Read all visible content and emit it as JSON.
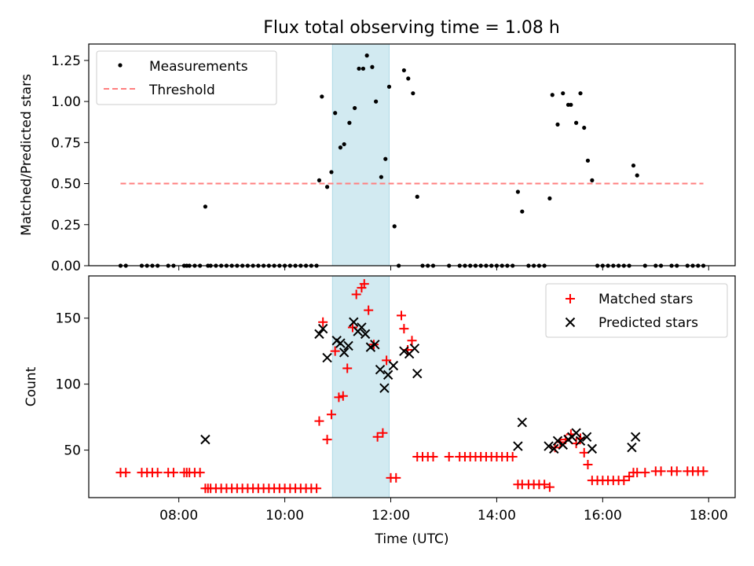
{
  "title": "Flux total observing time = 1.08 h",
  "colors": {
    "measurement": "#000000",
    "threshold": "#ff7f7f",
    "matched": "#ff0000",
    "predicted": "#000000",
    "span": "#add8e6"
  },
  "chart_data": [
    {
      "type": "scatter",
      "name": "ratio",
      "xlabel": "",
      "ylabel": "Matched/Predicted stars",
      "xlim": [
        6.3,
        18.5
      ],
      "ylim": [
        0,
        1.35
      ],
      "yticks": [
        0,
        0.25,
        0.5,
        0.75,
        1.0,
        1.25
      ],
      "yticklabels": [
        "0.00",
        "0.25",
        "0.50",
        "0.75",
        "1.00",
        "1.25"
      ],
      "span_hours": [
        10.9,
        11.97
      ],
      "legend": {
        "placement": "top-left",
        "measurements_label": "Measurements",
        "threshold_label": "Threshold"
      },
      "threshold": {
        "value": 0.5,
        "x_start": 6.9,
        "x_end": 17.9
      },
      "measurements": {
        "x": [
          6.9,
          7.0,
          7.3,
          7.4,
          7.5,
          7.6,
          7.8,
          7.9,
          8.1,
          8.15,
          8.2,
          8.3,
          8.4,
          8.5,
          8.55,
          8.6,
          8.7,
          8.8,
          8.9,
          9.0,
          9.1,
          9.2,
          9.3,
          9.4,
          9.5,
          9.6,
          9.7,
          9.8,
          9.9,
          10.0,
          10.1,
          10.2,
          10.3,
          10.4,
          10.5,
          10.6,
          10.65,
          10.7,
          10.8,
          10.88,
          10.95,
          11.05,
          11.12,
          11.22,
          11.32,
          11.4,
          11.48,
          11.55,
          11.65,
          11.72,
          11.82,
          11.9,
          11.97,
          12.07,
          12.15,
          12.25,
          12.33,
          12.42,
          12.5,
          12.6,
          12.7,
          12.8,
          13.1,
          13.3,
          13.4,
          13.5,
          13.6,
          13.7,
          13.8,
          13.9,
          14.0,
          14.1,
          14.2,
          14.3,
          14.4,
          14.48,
          14.6,
          14.7,
          14.8,
          14.9,
          15.0,
          15.05,
          15.15,
          15.25,
          15.35,
          15.4,
          15.5,
          15.58,
          15.65,
          15.72,
          15.8,
          15.9,
          16.0,
          16.1,
          16.2,
          16.3,
          16.4,
          16.5,
          16.58,
          16.65,
          16.8,
          17.0,
          17.1,
          17.3,
          17.4,
          17.6,
          17.7,
          17.8,
          17.9
        ],
        "y": [
          0,
          0,
          0,
          0,
          0,
          0,
          0,
          0,
          0,
          0,
          0,
          0,
          0,
          0.36,
          0,
          0,
          0,
          0,
          0,
          0,
          0,
          0,
          0,
          0,
          0,
          0,
          0,
          0,
          0,
          0,
          0,
          0,
          0,
          0,
          0,
          0,
          0.52,
          1.03,
          0.48,
          0.57,
          0.93,
          0.72,
          0.74,
          0.87,
          0.96,
          1.2,
          1.2,
          1.28,
          1.21,
          1.0,
          0.54,
          0.65,
          1.09,
          0.24,
          0,
          1.19,
          1.14,
          1.05,
          0.42,
          0,
          0,
          0,
          0,
          0,
          0,
          0,
          0,
          0,
          0,
          0,
          0,
          0,
          0,
          0,
          0.45,
          0.33,
          0,
          0,
          0,
          0,
          0.41,
          1.04,
          0.86,
          1.05,
          0.98,
          0.98,
          0.87,
          1.05,
          0.84,
          0.64,
          0.52,
          0,
          0,
          0,
          0,
          0,
          0,
          0,
          0.61,
          0.55,
          0,
          0,
          0,
          0,
          0,
          0,
          0,
          0,
          0
        ]
      }
    },
    {
      "type": "scatter",
      "name": "counts",
      "xlabel": "Time (UTC)",
      "ylabel": "Count",
      "xlim": [
        6.3,
        18.5
      ],
      "ylim": [
        14,
        182
      ],
      "yticks": [
        50,
        100,
        150
      ],
      "yticklabels": [
        "50",
        "100",
        "150"
      ],
      "xticks": [
        8,
        10,
        12,
        14,
        16,
        18
      ],
      "xticklabels": [
        "08:00",
        "10:00",
        "12:00",
        "14:00",
        "16:00",
        "18:00"
      ],
      "span_hours": [
        10.9,
        11.97
      ],
      "legend": {
        "placement": "top-right",
        "matched_label": "Matched stars",
        "predicted_label": "Predicted stars"
      },
      "matched": {
        "x": [
          6.9,
          7.0,
          7.3,
          7.4,
          7.5,
          7.6,
          7.8,
          7.9,
          8.1,
          8.15,
          8.2,
          8.3,
          8.4,
          8.5,
          8.55,
          8.6,
          8.7,
          8.8,
          8.9,
          9.0,
          9.1,
          9.2,
          9.3,
          9.4,
          9.5,
          9.6,
          9.7,
          9.8,
          9.9,
          10.0,
          10.1,
          10.2,
          10.3,
          10.4,
          10.5,
          10.6,
          10.65,
          10.72,
          10.8,
          10.88,
          10.95,
          11.02,
          11.1,
          11.18,
          11.28,
          11.35,
          11.45,
          11.5,
          11.58,
          11.68,
          11.75,
          11.85,
          11.92,
          12.0,
          12.1,
          12.2,
          12.25,
          12.32,
          12.4,
          12.5,
          12.6,
          12.7,
          12.8,
          13.1,
          13.3,
          13.4,
          13.5,
          13.6,
          13.7,
          13.8,
          13.9,
          14.0,
          14.1,
          14.2,
          14.3,
          14.4,
          14.48,
          14.6,
          14.7,
          14.8,
          14.9,
          15.0,
          15.1,
          15.2,
          15.3,
          15.4,
          15.5,
          15.58,
          15.65,
          15.72,
          15.8,
          15.9,
          16.0,
          16.1,
          16.2,
          16.3,
          16.4,
          16.5,
          16.58,
          16.65,
          16.8,
          17.0,
          17.1,
          17.3,
          17.4,
          17.6,
          17.7,
          17.8,
          17.9
        ],
        "y": [
          33,
          33,
          33,
          33,
          33,
          33,
          33,
          33,
          33,
          33,
          33,
          33,
          33,
          21,
          21,
          21,
          21,
          21,
          21,
          21,
          21,
          21,
          21,
          21,
          21,
          21,
          21,
          21,
          21,
          21,
          21,
          21,
          21,
          21,
          21,
          21,
          72,
          147,
          58,
          77,
          125,
          90,
          91,
          112,
          143,
          168,
          173,
          176,
          156,
          130,
          60,
          63,
          118,
          29,
          29,
          152,
          142,
          126,
          133,
          45,
          45,
          45,
          45,
          45,
          45,
          45,
          45,
          45,
          45,
          45,
          45,
          45,
          45,
          45,
          45,
          24,
          24,
          24,
          24,
          24,
          24,
          22,
          52,
          56,
          58,
          62,
          55,
          59,
          48,
          39,
          27,
          27,
          27,
          27,
          27,
          27,
          27,
          30,
          33,
          33,
          33,
          34,
          34,
          34,
          34,
          34,
          34,
          34,
          34
        ]
      },
      "predicted": {
        "x": [
          8.5,
          10.65,
          10.72,
          10.8,
          10.98,
          11.05,
          11.12,
          11.2,
          11.3,
          11.38,
          11.45,
          11.52,
          11.62,
          11.7,
          11.8,
          11.88,
          11.95,
          12.05,
          12.25,
          12.35,
          12.45,
          12.5,
          14.4,
          14.48,
          14.98,
          15.08,
          15.15,
          15.25,
          15.35,
          15.42,
          15.5,
          15.58,
          15.7,
          15.8,
          16.55,
          16.62
        ],
        "y": [
          58,
          138,
          142,
          120,
          133,
          131,
          124,
          129,
          147,
          140,
          143,
          138,
          128,
          130,
          111,
          97,
          107,
          114,
          125,
          123,
          127,
          108,
          53,
          71,
          53,
          51,
          57,
          54,
          58,
          60,
          63,
          57,
          60,
          51,
          52,
          60
        ]
      }
    }
  ]
}
